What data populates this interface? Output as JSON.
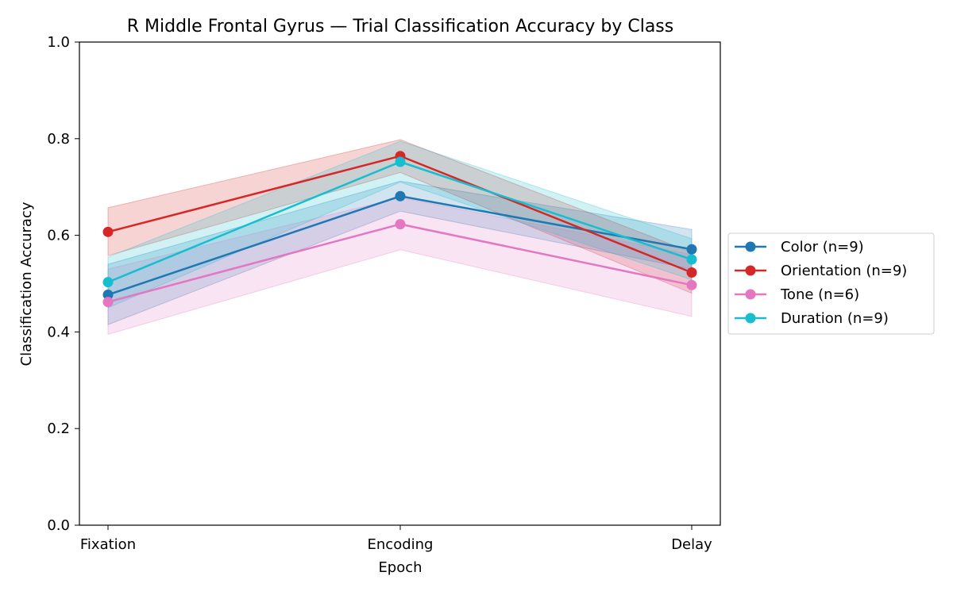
{
  "chart_data": {
    "type": "line",
    "title": "R Middle Frontal Gyrus — Trial Classification Accuracy by Class",
    "xlabel": "Epoch",
    "ylabel": "Classification Accuracy",
    "categories": [
      "Fixation",
      "Encoding",
      "Delay"
    ],
    "ylim": [
      0.0,
      1.0
    ],
    "yticks": [
      "0.0",
      "0.2",
      "0.4",
      "0.6",
      "0.8",
      "1.0"
    ],
    "grid": false,
    "legend_position": "outside-right",
    "series": [
      {
        "name": "Color (n=9)",
        "color": "#1f77b4",
        "values": [
          0.477,
          0.681,
          0.571
        ],
        "lower": [
          0.415,
          0.65,
          0.53
        ],
        "upper": [
          0.54,
          0.712,
          0.612
        ]
      },
      {
        "name": "Orientation (n=9)",
        "color": "#d62728",
        "values": [
          0.607,
          0.764,
          0.523
        ],
        "lower": [
          0.558,
          0.73,
          0.48
        ],
        "upper": [
          0.657,
          0.798,
          0.565
        ]
      },
      {
        "name": "Tone (n=6)",
        "color": "#e377c2",
        "values": [
          0.462,
          0.623,
          0.497
        ],
        "lower": [
          0.395,
          0.57,
          0.432
        ],
        "upper": [
          0.53,
          0.678,
          0.56
        ]
      },
      {
        "name": "Duration (n=9)",
        "color": "#17becf",
        "values": [
          0.503,
          0.752,
          0.55
        ],
        "lower": [
          0.45,
          0.71,
          0.508
        ],
        "upper": [
          0.555,
          0.795,
          0.593
        ]
      }
    ]
  }
}
